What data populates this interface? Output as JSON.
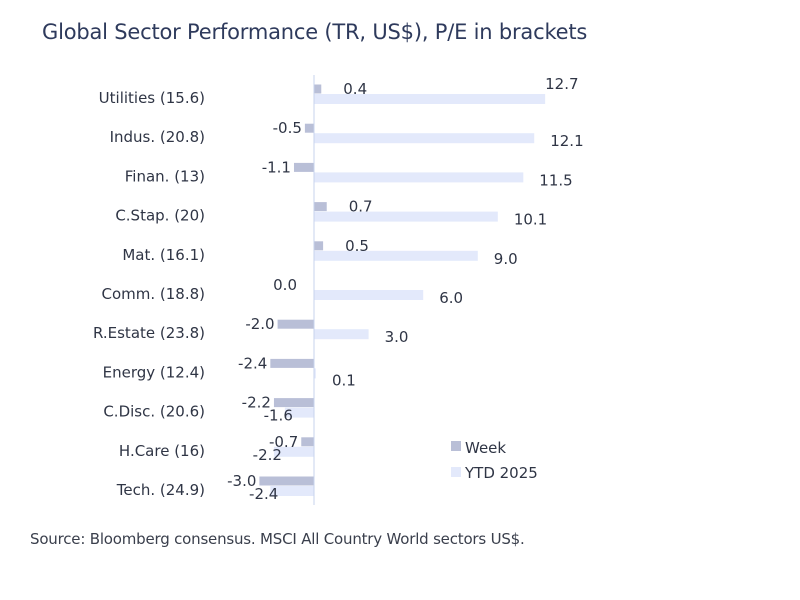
{
  "title": "Global Sector Performance (TR, US$), P/E in brackets",
  "source": "Source: Bloomberg consensus. MSCI All Country World sectors US$.",
  "colors": {
    "week": "#b9bfd7",
    "ytd": "#e3e9fb",
    "axis": "#c7d3ee",
    "text": "#2f3545",
    "title": "#2e3a5c"
  },
  "chart_data": {
    "type": "bar",
    "orientation": "horizontal",
    "categories": [
      "Utilities (15.6)",
      "Indus. (20.8)",
      "Finan. (13)",
      "C.Stap. (20)",
      "Mat. (16.1)",
      "Comm. (18.8)",
      "R.Estate (23.8)",
      "Energy (12.4)",
      "C.Disc. (20.6)",
      "H.Care (16)",
      "Tech. (24.9)"
    ],
    "series": [
      {
        "name": "Week",
        "values": [
          0.4,
          -0.5,
          -1.1,
          0.7,
          0.5,
          0.0,
          -2.0,
          -2.4,
          -2.2,
          -0.7,
          -3.0
        ],
        "labels": [
          "0.4",
          "-0.5",
          "-1.1",
          "0.7",
          "0.5",
          "0.0",
          "-2.0",
          "-2.4",
          "-2.2",
          "-0.7",
          "-3.0"
        ]
      },
      {
        "name": "YTD 2025",
        "values": [
          12.7,
          12.1,
          11.5,
          10.1,
          9.0,
          6.0,
          3.0,
          0.1,
          -1.6,
          -2.2,
          -2.4
        ],
        "labels": [
          "12.7",
          "12.1",
          "11.5",
          "10.1",
          "9.0",
          "6.0",
          "3.0",
          "0.1",
          "-1.6",
          "-2.2",
          "-2.4"
        ]
      }
    ],
    "legend_position": "bottom-right",
    "grid": false
  }
}
